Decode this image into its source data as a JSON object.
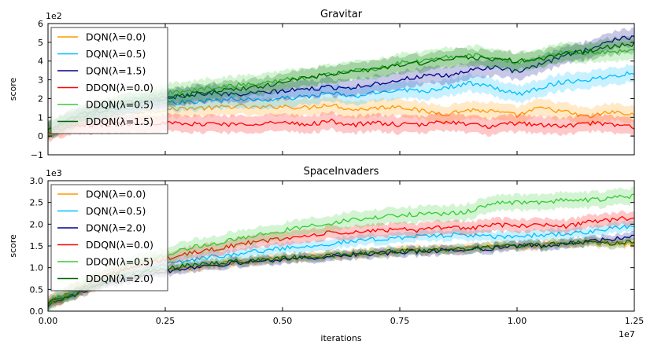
{
  "colors": {
    "orange": "#ff9900",
    "cyan": "#00bfff",
    "navy": "#00008b",
    "red": "#ff0000",
    "lime": "#33cc33",
    "darkgreen": "#006400"
  },
  "chart_data": [
    {
      "type": "line",
      "title": "Gravitar",
      "ylabel": "score",
      "xlabel": "",
      "y_scale_label": "1e2",
      "ylim": [
        -1,
        6
      ],
      "xlim": [
        0,
        1.25
      ],
      "yticks": [
        "−1",
        "0",
        "1",
        "2",
        "3",
        "4",
        "5",
        "6"
      ],
      "xticks": [],
      "grid": false,
      "legend": "top-left",
      "x": [
        0,
        0.05,
        0.1,
        0.15,
        0.2,
        0.25,
        0.3,
        0.35,
        0.4,
        0.45,
        0.5,
        0.55,
        0.6,
        0.65,
        0.7,
        0.75,
        0.8,
        0.85,
        0.9,
        0.95,
        1.0,
        1.05,
        1.1,
        1.15,
        1.2,
        1.25
      ],
      "series": [
        {
          "name": "DQN(λ=0.0)",
          "color": "orange",
          "values": [
            0.2,
            0.7,
            1.0,
            1.2,
            1.3,
            1.4,
            1.5,
            1.5,
            1.6,
            1.5,
            1.6,
            1.5,
            1.7,
            1.4,
            1.5,
            1.6,
            1.3,
            1.2,
            1.4,
            1.3,
            1.1,
            1.5,
            1.3,
            1.0,
            1.3,
            1.1
          ],
          "band": 0.45
        },
        {
          "name": "DQN(λ=0.5)",
          "color": "cyan",
          "values": [
            0.3,
            0.8,
            1.2,
            1.4,
            1.6,
            1.8,
            1.8,
            1.9,
            2.0,
            1.9,
            2.0,
            2.1,
            2.3,
            2.1,
            2.3,
            2.5,
            2.4,
            2.6,
            2.8,
            2.6,
            2.2,
            2.6,
            2.9,
            3.0,
            3.2,
            3.4
          ],
          "band": 0.45
        },
        {
          "name": "DQN(λ=1.5)",
          "color": "navy",
          "values": [
            0.3,
            0.9,
            1.3,
            1.5,
            1.7,
            2.0,
            2.2,
            2.3,
            2.2,
            2.3,
            2.4,
            2.5,
            2.6,
            2.6,
            2.8,
            3.0,
            3.2,
            3.2,
            3.5,
            3.7,
            3.4,
            3.8,
            4.3,
            4.6,
            5.1,
            5.3
          ],
          "band": 0.45
        },
        {
          "name": "DDQN(λ=0.0)",
          "color": "red",
          "values": [
            0.2,
            0.5,
            0.6,
            0.6,
            0.7,
            0.7,
            0.6,
            0.7,
            0.6,
            0.7,
            0.7,
            0.6,
            0.8,
            0.6,
            0.7,
            0.6,
            0.6,
            0.8,
            0.6,
            0.5,
            0.7,
            0.6,
            0.5,
            0.7,
            0.6,
            0.5
          ],
          "band": 0.45
        },
        {
          "name": "DDQN(λ=0.5)",
          "color": "lime",
          "values": [
            0.3,
            0.9,
            1.3,
            1.7,
            2.0,
            2.3,
            2.4,
            2.6,
            2.7,
            2.8,
            3.0,
            3.1,
            3.3,
            3.5,
            3.6,
            3.9,
            4.0,
            4.2,
            4.3,
            4.2,
            3.9,
            4.2,
            4.5,
            4.4,
            4.5,
            4.6
          ],
          "band": 0.5
        },
        {
          "name": "DDQN(λ=1.5)",
          "color": "darkgreen",
          "values": [
            0.3,
            1.0,
            1.4,
            1.7,
            1.9,
            2.1,
            2.2,
            2.4,
            2.5,
            2.6,
            2.9,
            3.1,
            3.3,
            3.4,
            3.6,
            3.8,
            3.9,
            4.1,
            4.2,
            4.1,
            4.0,
            4.1,
            4.4,
            4.5,
            4.8,
            4.9
          ],
          "band": 0.45
        }
      ]
    },
    {
      "type": "line",
      "title": "SpaceInvaders",
      "ylabel": "score",
      "xlabel": "iterations",
      "y_scale_label": "1e3",
      "x_scale_label": "1e7",
      "ylim": [
        0,
        3
      ],
      "xlim": [
        0,
        1.25
      ],
      "yticks": [
        "0.0",
        "0.5",
        "1.0",
        "1.5",
        "2.0",
        "2.5",
        "3.0"
      ],
      "xticks": [
        "0.00",
        "0.25",
        "0.50",
        "0.75",
        "1.00",
        "1.25"
      ],
      "grid": false,
      "legend": "top-left",
      "x": [
        0,
        0.05,
        0.1,
        0.15,
        0.2,
        0.25,
        0.3,
        0.35,
        0.4,
        0.45,
        0.5,
        0.55,
        0.6,
        0.65,
        0.7,
        0.75,
        0.8,
        0.85,
        0.9,
        0.95,
        1.0,
        1.05,
        1.1,
        1.15,
        1.2,
        1.25
      ],
      "series": [
        {
          "name": "DQN(λ=0.0)",
          "color": "orange",
          "values": [
            0.15,
            0.35,
            0.55,
            0.7,
            0.82,
            0.92,
            1.0,
            1.07,
            1.12,
            1.17,
            1.2,
            1.25,
            1.28,
            1.32,
            1.35,
            1.38,
            1.4,
            1.42,
            1.45,
            1.48,
            1.5,
            1.52,
            1.55,
            1.6,
            1.55,
            1.55
          ],
          "band": 0.1
        },
        {
          "name": "DQN(λ=0.5)",
          "color": "cyan",
          "values": [
            0.2,
            0.4,
            0.62,
            0.8,
            0.95,
            1.07,
            1.17,
            1.25,
            1.32,
            1.38,
            1.45,
            1.5,
            1.55,
            1.6,
            1.65,
            1.7,
            1.72,
            1.75,
            1.75,
            1.7,
            1.72,
            1.75,
            1.78,
            1.8,
            1.9,
            1.95
          ],
          "band": 0.12
        },
        {
          "name": "DQN(λ=2.0)",
          "color": "navy",
          "values": [
            0.15,
            0.35,
            0.55,
            0.7,
            0.82,
            0.92,
            1.0,
            1.06,
            1.1,
            1.15,
            1.2,
            1.22,
            1.25,
            1.3,
            1.32,
            1.35,
            1.38,
            1.4,
            1.42,
            1.45,
            1.5,
            1.5,
            1.55,
            1.6,
            1.65,
            1.7
          ],
          "band": 0.1
        },
        {
          "name": "DDQN(λ=0.0)",
          "color": "red",
          "values": [
            0.2,
            0.45,
            0.7,
            0.9,
            1.05,
            1.2,
            1.32,
            1.42,
            1.52,
            1.6,
            1.67,
            1.72,
            1.8,
            1.8,
            1.85,
            1.9,
            1.85,
            1.95,
            1.9,
            2.0,
            1.95,
            2.0,
            1.95,
            2.05,
            2.1,
            2.15
          ],
          "band": 0.15
        },
        {
          "name": "DDQN(λ=0.5)",
          "color": "lime",
          "values": [
            0.2,
            0.45,
            0.72,
            0.95,
            1.15,
            1.3,
            1.45,
            1.55,
            1.65,
            1.75,
            1.85,
            1.95,
            2.02,
            2.1,
            2.15,
            2.2,
            2.25,
            2.22,
            2.3,
            2.5,
            2.5,
            2.5,
            2.55,
            2.55,
            2.6,
            2.65
          ],
          "band": 0.18
        },
        {
          "name": "DDQN(λ=2.0)",
          "color": "darkgreen",
          "values": [
            0.2,
            0.38,
            0.58,
            0.75,
            0.88,
            0.98,
            1.05,
            1.1,
            1.15,
            1.18,
            1.22,
            1.25,
            1.28,
            1.32,
            1.35,
            1.38,
            1.4,
            1.42,
            1.45,
            1.48,
            1.5,
            1.52,
            1.55,
            1.6,
            1.55,
            1.6
          ],
          "band": 0.1
        }
      ]
    }
  ]
}
